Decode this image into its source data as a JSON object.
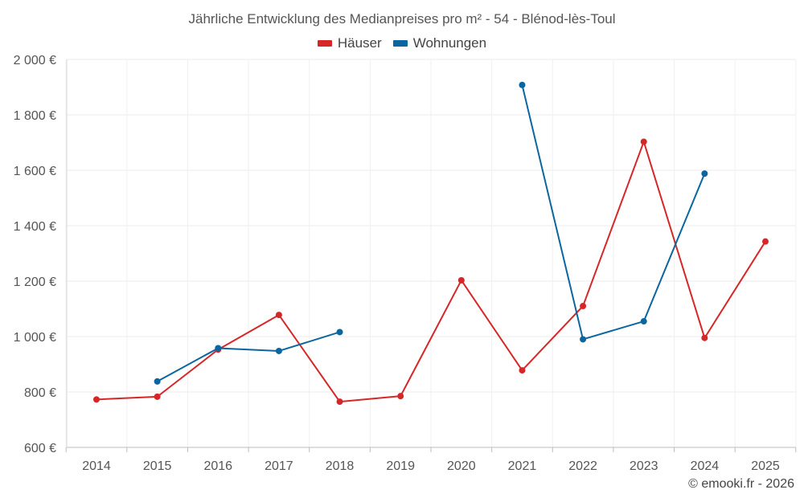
{
  "chart_data": {
    "type": "line",
    "title": "Jährliche Entwicklung des Medianpreises pro m² - 54 - Blénod-lès-Toul",
    "xlabel": "",
    "ylabel": "",
    "categories": [
      "2014",
      "2015",
      "2016",
      "2017",
      "2018",
      "2019",
      "2020",
      "2021",
      "2022",
      "2023",
      "2024",
      "2025"
    ],
    "ylim": [
      600,
      2000
    ],
    "yticks": [
      600,
      800,
      1000,
      1200,
      1400,
      1600,
      1800,
      2000
    ],
    "ytick_labels": [
      "600 €",
      "800 €",
      "1 000 €",
      "1 200 €",
      "1 400 €",
      "1 600 €",
      "1 800 €",
      "2 000 €"
    ],
    "grid": true,
    "legend_position": "top-center",
    "series": [
      {
        "name": "Häuser",
        "color": "#d62728",
        "values": [
          773,
          783,
          953,
          1078,
          765,
          785,
          1203,
          878,
          1110,
          1703,
          995,
          1343
        ]
      },
      {
        "name": "Wohnungen",
        "color": "#0b66a0",
        "values": [
          null,
          838,
          958,
          948,
          1016,
          null,
          null,
          1908,
          990,
          1055,
          1588,
          null
        ]
      }
    ]
  },
  "credit": "© emooki.fr - 2026"
}
